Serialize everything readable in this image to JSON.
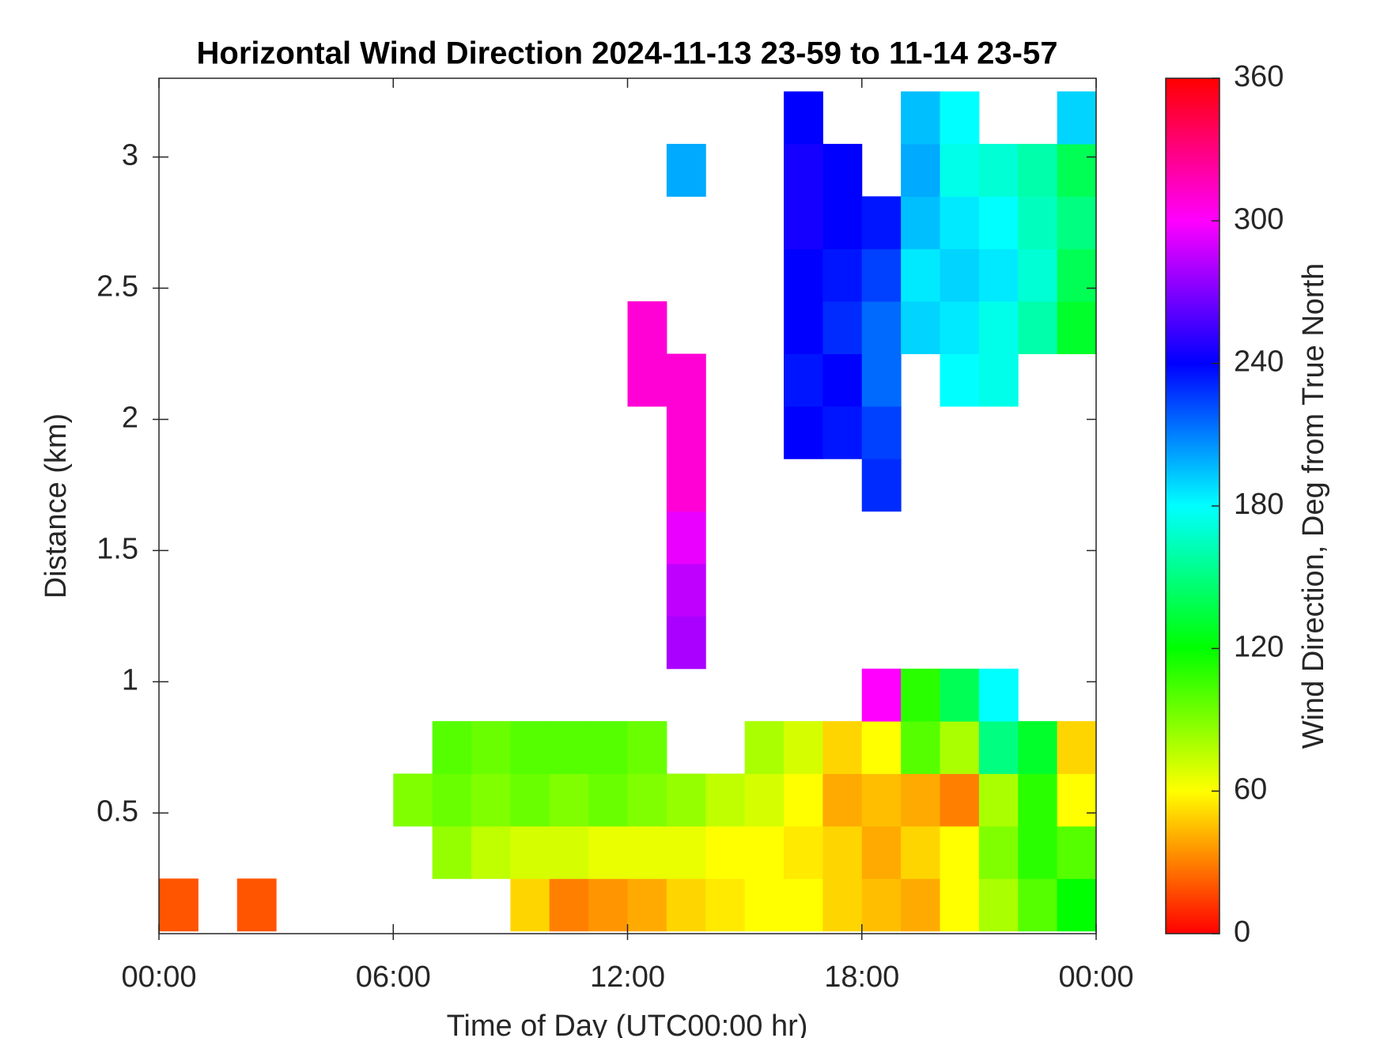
{
  "chart_data": {
    "type": "heatmap",
    "title": "Horizontal Wind Direction 2024-11-13 23-59 to 11-14 23-57",
    "x_label": "Time of Day (UTC00:00 hr)",
    "y_label": "Distance (km)",
    "colorbar_label": "Wind Direction, Deg from True North",
    "colormap": "hsv",
    "x": [
      0.5,
      1.5,
      2.5,
      3.5,
      4.5,
      5.5,
      6.5,
      7.5,
      8.5,
      9.5,
      10.5,
      11.5,
      12.5,
      13.5,
      14.5,
      15.5,
      16.5,
      17.5,
      18.5,
      19.5,
      20.5,
      21.5,
      22.5,
      23.5
    ],
    "y": [
      0.15,
      0.35,
      0.55,
      0.75,
      0.95,
      1.15,
      1.35,
      1.55,
      1.75,
      1.95,
      2.15,
      2.35,
      2.55,
      2.75,
      2.95,
      3.15
    ],
    "values": [
      [
        20,
        null,
        20,
        null,
        null,
        null,
        null,
        null,
        null,
        50,
        30,
        35,
        40,
        50,
        55,
        60,
        60,
        50,
        45,
        40,
        60,
        80,
        100,
        120
      ],
      [
        null,
        null,
        null,
        null,
        null,
        null,
        null,
        85,
        75,
        70,
        70,
        65,
        65,
        65,
        60,
        60,
        55,
        50,
        40,
        50,
        60,
        90,
        110,
        100
      ],
      [
        null,
        null,
        null,
        null,
        null,
        null,
        90,
        95,
        90,
        95,
        90,
        95,
        90,
        85,
        75,
        70,
        60,
        40,
        45,
        40,
        30,
        80,
        110,
        60
      ],
      [
        null,
        null,
        null,
        null,
        null,
        null,
        null,
        100,
        95,
        100,
        100,
        100,
        95,
        null,
        null,
        80,
        70,
        50,
        60,
        100,
        80,
        150,
        130,
        50
      ],
      [
        null,
        null,
        null,
        null,
        null,
        null,
        null,
        null,
        null,
        null,
        null,
        null,
        null,
        null,
        null,
        null,
        null,
        null,
        300,
        110,
        140,
        180,
        null,
        null
      ],
      [
        null,
        null,
        null,
        null,
        null,
        null,
        null,
        null,
        null,
        null,
        null,
        null,
        null,
        280,
        null,
        null,
        null,
        null,
        null,
        null,
        null,
        null,
        null,
        null
      ],
      [
        null,
        null,
        null,
        null,
        null,
        null,
        null,
        null,
        null,
        null,
        null,
        null,
        null,
        285,
        null,
        null,
        null,
        null,
        null,
        null,
        null,
        null,
        null,
        null
      ],
      [
        null,
        null,
        null,
        null,
        null,
        null,
        null,
        null,
        null,
        null,
        null,
        null,
        null,
        295,
        null,
        null,
        null,
        null,
        null,
        null,
        null,
        null,
        null,
        null
      ],
      [
        null,
        null,
        null,
        null,
        null,
        null,
        null,
        null,
        null,
        null,
        null,
        null,
        null,
        310,
        null,
        null,
        null,
        null,
        230,
        null,
        null,
        null,
        null,
        null
      ],
      [
        null,
        null,
        null,
        null,
        null,
        null,
        null,
        null,
        null,
        null,
        null,
        null,
        null,
        310,
        null,
        null,
        240,
        235,
        225,
        null,
        null,
        null,
        null,
        null
      ],
      [
        null,
        null,
        null,
        null,
        null,
        null,
        null,
        null,
        null,
        null,
        null,
        null,
        310,
        310,
        null,
        null,
        235,
        240,
        215,
        null,
        180,
        175,
        null,
        null
      ],
      [
        null,
        null,
        null,
        null,
        null,
        null,
        null,
        null,
        null,
        null,
        null,
        null,
        310,
        null,
        null,
        null,
        240,
        230,
        215,
        190,
        185,
        175,
        160,
        130
      ],
      [
        null,
        null,
        null,
        null,
        null,
        null,
        null,
        null,
        null,
        null,
        null,
        null,
        null,
        null,
        null,
        null,
        240,
        235,
        225,
        185,
        190,
        185,
        170,
        140
      ],
      [
        null,
        null,
        null,
        null,
        null,
        null,
        null,
        null,
        null,
        null,
        null,
        null,
        null,
        null,
        null,
        null,
        245,
        240,
        235,
        195,
        185,
        180,
        165,
        150
      ],
      [
        null,
        null,
        null,
        null,
        null,
        null,
        null,
        null,
        null,
        null,
        null,
        null,
        null,
        200,
        null,
        null,
        245,
        240,
        null,
        200,
        175,
        170,
        160,
        140
      ],
      [
        null,
        null,
        null,
        null,
        null,
        null,
        null,
        null,
        null,
        null,
        null,
        null,
        null,
        null,
        null,
        null,
        240,
        null,
        null,
        195,
        180,
        null,
        null,
        190
      ]
    ],
    "xlim": [
      0,
      24
    ],
    "xticks": [
      {
        "value": 0,
        "label": "00:00"
      },
      {
        "value": 6,
        "label": "06:00"
      },
      {
        "value": 12,
        "label": "12:00"
      },
      {
        "value": 18,
        "label": "18:00"
      },
      {
        "value": 24,
        "label": "00:00"
      }
    ],
    "ylim": [
      0.04,
      3.3
    ],
    "yticks": [
      0.5,
      1,
      1.5,
      2,
      2.5,
      3
    ],
    "clim": [
      0,
      360
    ],
    "cticks": [
      0,
      60,
      120,
      180,
      240,
      300,
      360
    ]
  }
}
